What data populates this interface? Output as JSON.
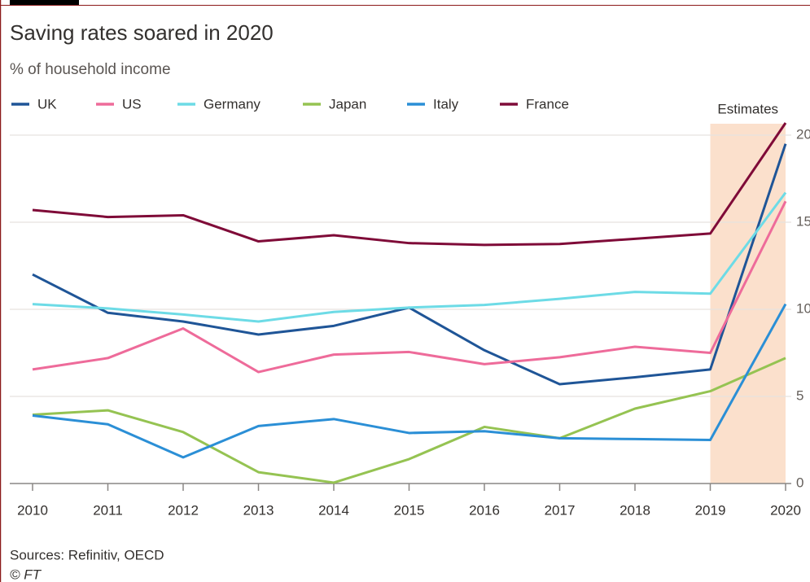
{
  "chart_data": {
    "type": "line",
    "title": "Saving rates soared in 2020",
    "subtitle": "% of household income",
    "source": "Sources: Refinitiv, OECD",
    "credit": "© FT",
    "shade": {
      "label": "Estimates",
      "from": 2019,
      "to": 2020,
      "color": "#fbe0cc"
    },
    "x": [
      2010,
      2011,
      2012,
      2013,
      2014,
      2015,
      2016,
      2017,
      2018,
      2019,
      2020
    ],
    "xlim": [
      2010,
      2020
    ],
    "xticks": [
      2010,
      2011,
      2012,
      2013,
      2014,
      2015,
      2016,
      2017,
      2018,
      2019,
      2020
    ],
    "ylim": [
      0,
      21
    ],
    "yticks": [
      0,
      5,
      10,
      15,
      20
    ],
    "grid": true,
    "series": [
      {
        "name": "UK",
        "color": "#1f5597",
        "values": [
          12.0,
          9.8,
          9.3,
          8.55,
          9.05,
          10.1,
          7.65,
          5.7,
          6.1,
          6.55,
          19.5
        ]
      },
      {
        "name": "US",
        "color": "#ee6b9a",
        "values": [
          6.55,
          7.2,
          8.9,
          6.4,
          7.4,
          7.55,
          6.85,
          7.25,
          7.85,
          7.5,
          16.2
        ]
      },
      {
        "name": "Germany",
        "color": "#6ddbe6",
        "values": [
          10.3,
          10.05,
          9.7,
          9.3,
          9.85,
          10.1,
          10.25,
          10.6,
          11.0,
          10.9,
          16.7
        ]
      },
      {
        "name": "Japan",
        "color": "#95c352",
        "values": [
          3.95,
          4.2,
          2.95,
          0.65,
          0.05,
          1.4,
          3.25,
          2.6,
          4.3,
          5.3,
          7.2
        ]
      },
      {
        "name": "Italy",
        "color": "#2b8fd6",
        "values": [
          3.9,
          3.4,
          1.5,
          3.3,
          3.7,
          2.9,
          3.0,
          2.6,
          2.55,
          2.5,
          10.3
        ]
      },
      {
        "name": "France",
        "color": "#7f0b38",
        "values": [
          15.7,
          15.3,
          15.4,
          13.9,
          14.25,
          13.8,
          13.7,
          13.75,
          14.05,
          14.35,
          20.7
        ]
      }
    ]
  }
}
